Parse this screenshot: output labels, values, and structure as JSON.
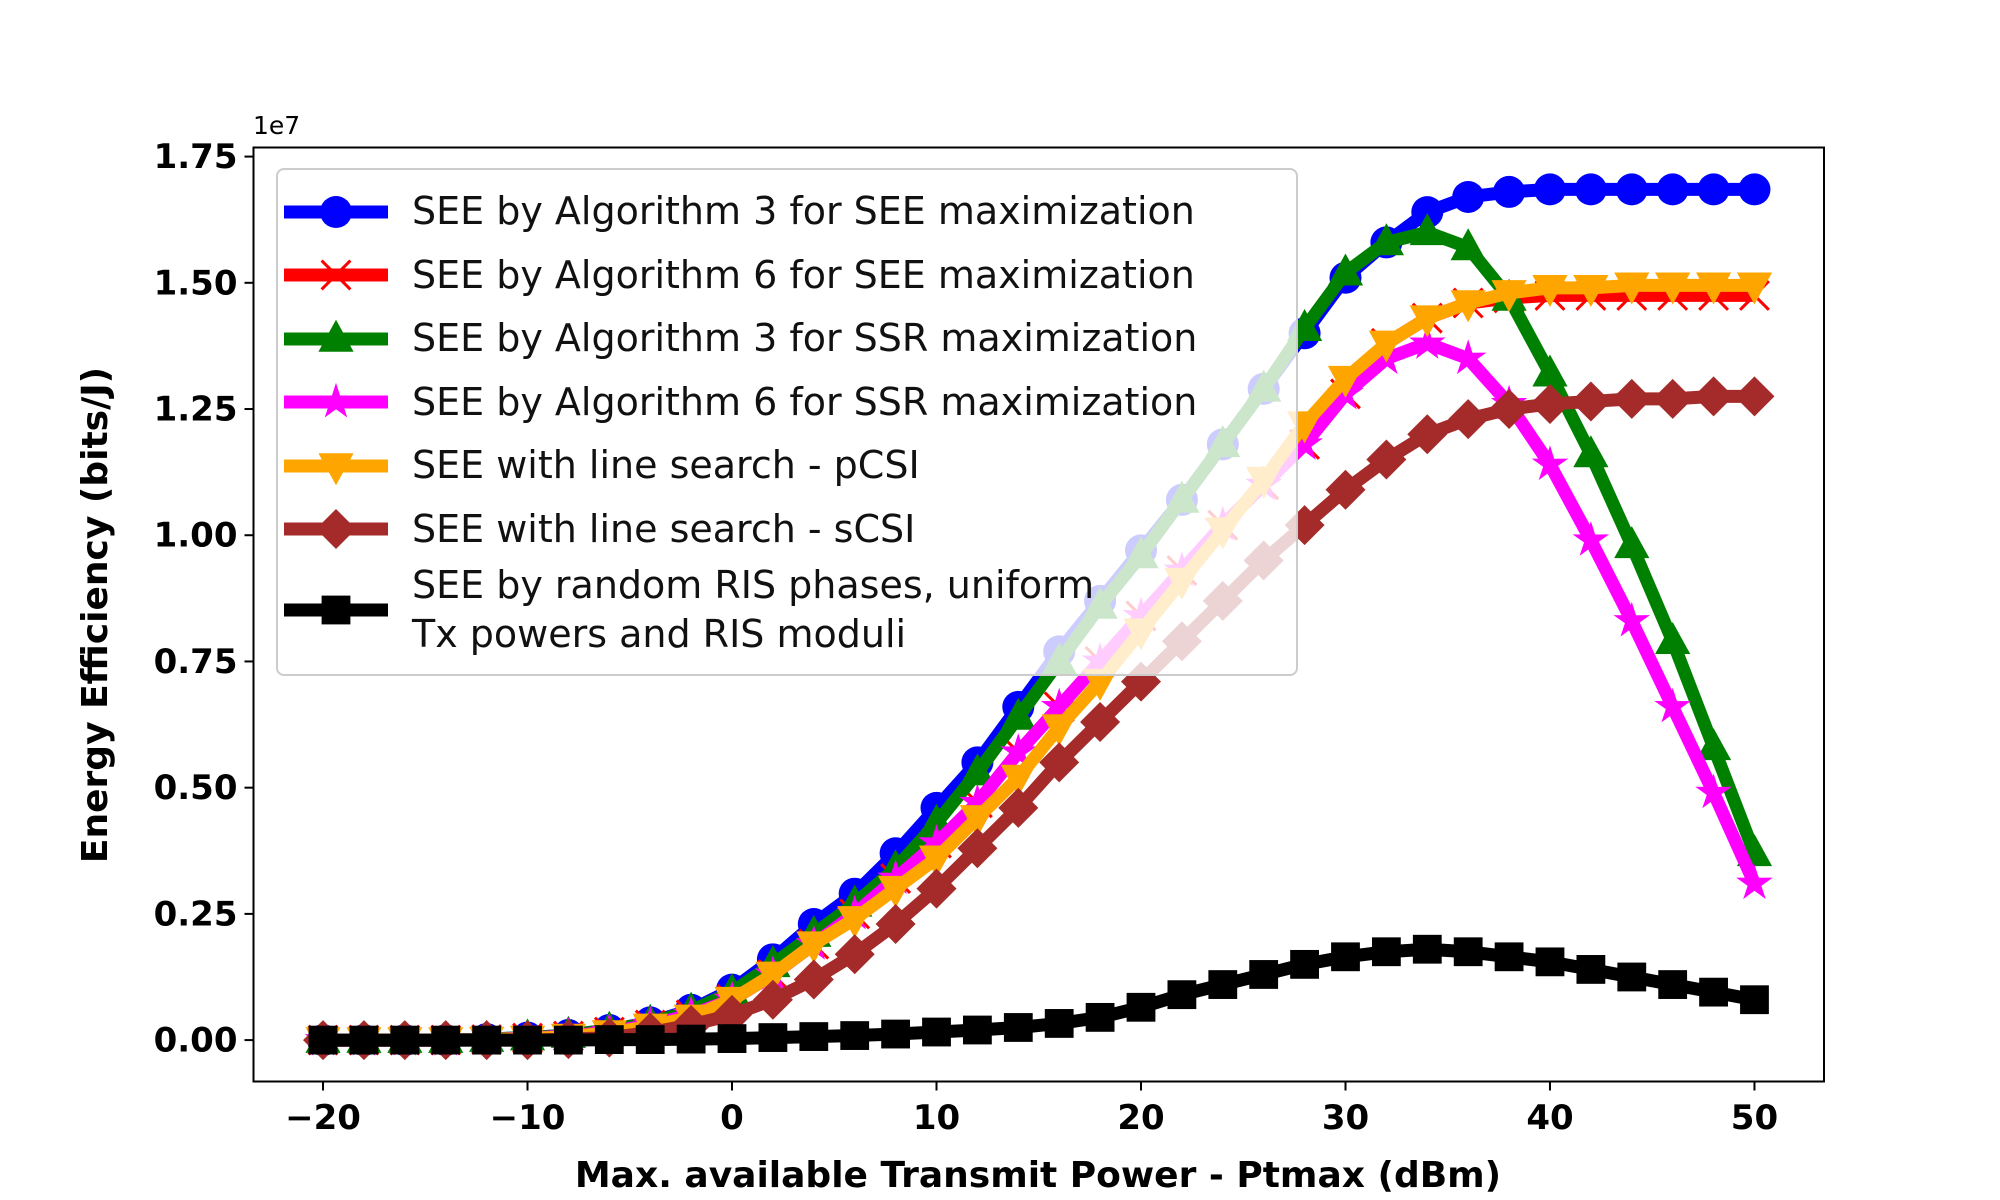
{
  "chart_data": {
    "type": "line",
    "xlabel": "Max. available Transmit Power - Ptmax (dBm)",
    "ylabel": "Energy Efficiency (bits/J)",
    "y_offset_label": "1e7",
    "x": [
      -20,
      -18,
      -16,
      -14,
      -12,
      -10,
      -8,
      -6,
      -4,
      -2,
      0,
      2,
      4,
      6,
      8,
      10,
      12,
      14,
      16,
      18,
      20,
      22,
      24,
      26,
      28,
      30,
      32,
      34,
      36,
      38,
      40,
      42,
      44,
      46,
      48,
      50
    ],
    "xlim": [
      -23.4,
      53.4
    ],
    "xticks": [
      {
        "value": -20,
        "label": "−20"
      },
      {
        "value": -10,
        "label": "−10"
      },
      0,
      10,
      20,
      30,
      40,
      50
    ],
    "ylim": [
      -0.082,
      1.768
    ],
    "yticks": [
      {
        "value": 0,
        "label": "0.00"
      },
      {
        "value": 0.25,
        "label": "0.25"
      },
      {
        "value": 0.5,
        "label": "0.50"
      },
      {
        "value": 0.75,
        "label": "0.75"
      },
      {
        "value": 1,
        "label": "1.00"
      },
      {
        "value": 1.25,
        "label": "1.25"
      },
      {
        "value": 1.5,
        "label": "1.50"
      },
      {
        "value": 1.75,
        "label": "1.75"
      }
    ],
    "grid": false,
    "legend": "upper left",
    "series": [
      {
        "name": "SEE by Algorithm 3 for SEE maximization",
        "color": "#0000ff",
        "marker": "circle",
        "values": [
          0,
          0,
          0,
          0,
          0.002,
          0.005,
          0.01,
          0.02,
          0.035,
          0.06,
          0.1,
          0.16,
          0.23,
          0.29,
          0.37,
          0.46,
          0.55,
          0.66,
          0.77,
          0.87,
          0.97,
          1.07,
          1.18,
          1.29,
          1.4,
          1.51,
          1.58,
          1.64,
          1.67,
          1.68,
          1.685,
          1.685,
          1.685,
          1.685,
          1.685,
          1.685
        ]
      },
      {
        "name": "SEE by Algorithm 6 for SEE maximization",
        "color": "#ff0000",
        "marker": "x",
        "values": [
          0,
          0,
          0,
          0,
          0.001,
          0.004,
          0.008,
          0.016,
          0.03,
          0.05,
          0.08,
          0.13,
          0.19,
          0.25,
          0.32,
          0.39,
          0.47,
          0.57,
          0.66,
          0.75,
          0.84,
          0.93,
          1.02,
          1.1,
          1.18,
          1.28,
          1.38,
          1.43,
          1.46,
          1.47,
          1.475,
          1.475,
          1.475,
          1.475,
          1.475,
          1.475
        ]
      },
      {
        "name": "SEE by Algorithm 3 for SSR maximization",
        "color": "#008000",
        "marker": "triangle-up",
        "values": [
          0,
          0,
          0,
          0,
          0.002,
          0.005,
          0.01,
          0.02,
          0.034,
          0.058,
          0.095,
          0.15,
          0.21,
          0.27,
          0.34,
          0.43,
          0.53,
          0.64,
          0.75,
          0.86,
          0.96,
          1.07,
          1.18,
          1.29,
          1.41,
          1.52,
          1.58,
          1.6,
          1.57,
          1.47,
          1.32,
          1.16,
          0.98,
          0.79,
          0.58,
          0.37
        ]
      },
      {
        "name": "SEE by Algorithm 6 for SSR maximization",
        "color": "#ff00ff",
        "marker": "star",
        "values": [
          0,
          0,
          0,
          0,
          0.001,
          0.004,
          0.008,
          0.016,
          0.03,
          0.05,
          0.08,
          0.13,
          0.19,
          0.25,
          0.32,
          0.39,
          0.47,
          0.57,
          0.66,
          0.75,
          0.84,
          0.93,
          1.02,
          1.1,
          1.18,
          1.28,
          1.35,
          1.38,
          1.35,
          1.26,
          1.14,
          0.99,
          0.83,
          0.66,
          0.49,
          0.31
        ]
      },
      {
        "name": "SEE with line search - pCSI",
        "color": "#ffa500",
        "marker": "triangle-down",
        "values": [
          0,
          0,
          0,
          0,
          0.001,
          0.003,
          0.007,
          0.014,
          0.027,
          0.045,
          0.08,
          0.13,
          0.19,
          0.24,
          0.3,
          0.36,
          0.44,
          0.52,
          0.62,
          0.71,
          0.81,
          0.91,
          1.01,
          1.11,
          1.22,
          1.31,
          1.38,
          1.43,
          1.46,
          1.48,
          1.49,
          1.49,
          1.495,
          1.495,
          1.495,
          1.495
        ]
      },
      {
        "name": "SEE with line search - sCSI",
        "color": "#a52a2a",
        "marker": "diamond",
        "values": [
          0,
          0,
          0,
          0,
          0,
          0,
          0.002,
          0.005,
          0.015,
          0.03,
          0.05,
          0.08,
          0.12,
          0.17,
          0.23,
          0.3,
          0.38,
          0.46,
          0.55,
          0.63,
          0.71,
          0.79,
          0.87,
          0.95,
          1.02,
          1.09,
          1.15,
          1.2,
          1.23,
          1.25,
          1.26,
          1.265,
          1.27,
          1.27,
          1.275,
          1.275
        ]
      },
      {
        "name": "SEE by random RIS phases, uniform\nTx powers and RIS moduli",
        "color": "#000000",
        "marker": "square",
        "values": [
          0,
          0,
          0,
          0,
          0,
          0,
          0,
          0.001,
          0.001,
          0.002,
          0.003,
          0.005,
          0.007,
          0.009,
          0.012,
          0.016,
          0.02,
          0.025,
          0.033,
          0.045,
          0.065,
          0.09,
          0.11,
          0.13,
          0.15,
          0.165,
          0.175,
          0.18,
          0.175,
          0.165,
          0.155,
          0.14,
          0.125,
          0.11,
          0.095,
          0.08
        ]
      }
    ]
  }
}
